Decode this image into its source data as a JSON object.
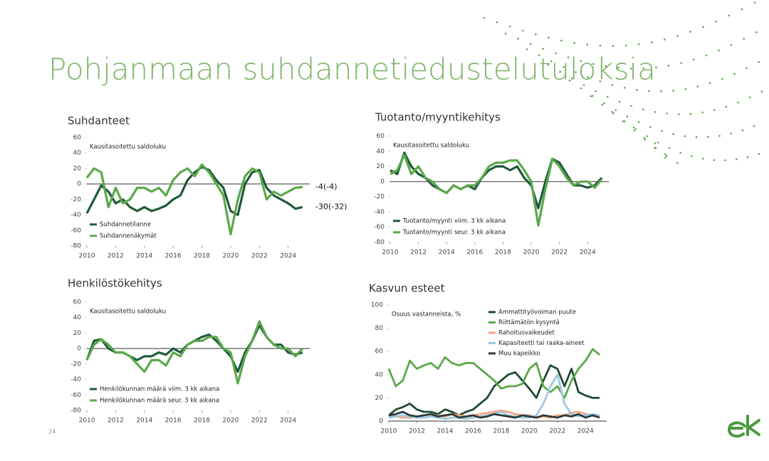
{
  "title": "Pohjanmaan suhdannetiedustelutuloksia",
  "page_number": "24",
  "chart_data": [
    {
      "type": "line",
      "title": "Suhdanteet",
      "subtitle": "Kausitasoitettu saldoluku",
      "x": [
        2010,
        2010.5,
        2011,
        2011.5,
        2012,
        2012.5,
        2013,
        2013.5,
        2014,
        2014.5,
        2015,
        2015.5,
        2016,
        2016.5,
        2017,
        2017.5,
        2018,
        2018.5,
        2019,
        2019.5,
        2020,
        2020.5,
        2021,
        2021.5,
        2022,
        2022.5,
        2023,
        2023.5,
        2024,
        2024.5,
        2025
      ],
      "xlim": [
        2010,
        2025.5
      ],
      "xticks": [
        2010,
        2012,
        2014,
        2016,
        2018,
        2020,
        2022,
        2024
      ],
      "ylim": [
        -80,
        60
      ],
      "yticks": [
        -80,
        -60,
        -40,
        -20,
        0,
        20,
        40,
        60
      ],
      "legend": "lower left",
      "series": [
        {
          "name": "Suhdannetilanne",
          "color": "#1f5a3a",
          "values": [
            -38,
            -20,
            -2,
            -10,
            -25,
            -20,
            -30,
            -35,
            -30,
            -35,
            -32,
            -28,
            -20,
            -15,
            5,
            15,
            22,
            18,
            5,
            -5,
            -35,
            -40,
            0,
            15,
            18,
            -5,
            -15,
            -20,
            -25,
            -32,
            -30
          ]
        },
        {
          "name": "Suhdannenäkymät",
          "color": "#5aa84a",
          "values": [
            8,
            20,
            15,
            -30,
            -5,
            -25,
            -20,
            -5,
            -5,
            -10,
            -5,
            -15,
            5,
            15,
            20,
            10,
            25,
            15,
            0,
            -15,
            -65,
            -20,
            10,
            20,
            15,
            -20,
            -10,
            -15,
            -10,
            -5,
            -4
          ]
        }
      ],
      "annotations": [
        "-30(-32)",
        "-4(-4)"
      ]
    },
    {
      "type": "line",
      "title": "Tuotanto/myyntikehitys",
      "subtitle": "Kausitasoitettu saldoluku",
      "x": [
        2010,
        2010.5,
        2011,
        2011.5,
        2012,
        2012.5,
        2013,
        2013.5,
        2014,
        2014.5,
        2015,
        2015.5,
        2016,
        2016.5,
        2017,
        2017.5,
        2018,
        2018.5,
        2019,
        2019.5,
        2020,
        2020.5,
        2021,
        2021.5,
        2022,
        2022.5,
        2023,
        2023.5,
        2024,
        2024.5,
        2025
      ],
      "xlim": [
        2010,
        2025.5
      ],
      "xticks": [
        2010,
        2012,
        2014,
        2016,
        2018,
        2020,
        2022,
        2024
      ],
      "ylim": [
        -80,
        60
      ],
      "yticks": [
        -80,
        -60,
        -40,
        -20,
        0,
        20,
        40,
        60
      ],
      "legend": "lower left",
      "series": [
        {
          "name": "Tuotanto/myynti viim. 3 kk aikana",
          "color": "#1f5a3a",
          "values": [
            15,
            10,
            38,
            20,
            10,
            5,
            -5,
            -10,
            -15,
            -5,
            -10,
            -5,
            -10,
            5,
            15,
            20,
            20,
            15,
            20,
            5,
            -5,
            -35,
            0,
            30,
            25,
            10,
            -5,
            -5,
            -8,
            -5,
            5
          ]
        },
        {
          "name": "Tuotanto/myynti seur. 3 kk aikana",
          "color": "#5aa84a",
          "values": [
            10,
            15,
            35,
            10,
            20,
            5,
            0,
            -10,
            -15,
            -5,
            -10,
            -5,
            -5,
            5,
            20,
            25,
            25,
            28,
            28,
            15,
            0,
            -58,
            -10,
            30,
            20,
            5,
            -5,
            0,
            0,
            -8,
            3
          ]
        }
      ]
    },
    {
      "type": "line",
      "title": "Henkilöstökehitys",
      "subtitle": "Kausitasoitettu saldoluku",
      "x": [
        2010,
        2010.5,
        2011,
        2011.5,
        2012,
        2012.5,
        2013,
        2013.5,
        2014,
        2014.5,
        2015,
        2015.5,
        2016,
        2016.5,
        2017,
        2017.5,
        2018,
        2018.5,
        2019,
        2019.5,
        2020,
        2020.5,
        2021,
        2021.5,
        2022,
        2022.5,
        2023,
        2023.5,
        2024,
        2024.5,
        2025
      ],
      "xlim": [
        2010,
        2025.5
      ],
      "xticks": [
        2010,
        2012,
        2014,
        2016,
        2018,
        2020,
        2022,
        2024
      ],
      "ylim": [
        -80,
        60
      ],
      "yticks": [
        -80,
        -60,
        -40,
        -20,
        0,
        20,
        40,
        60
      ],
      "legend": "lower left",
      "series": [
        {
          "name": "Henkilökunnan määrä viim. 3 kk aikana",
          "color": "#1f5a3a",
          "values": [
            -15,
            10,
            12,
            0,
            -5,
            -5,
            -10,
            -15,
            -10,
            -10,
            -5,
            -8,
            0,
            -5,
            5,
            10,
            15,
            18,
            10,
            0,
            -10,
            -30,
            -5,
            10,
            30,
            15,
            5,
            5,
            -5,
            -8,
            -5
          ]
        },
        {
          "name": "Henkilökunnan määrä seur. 3 kk aikana",
          "color": "#5aa84a",
          "values": [
            -15,
            5,
            12,
            5,
            -5,
            -5,
            -10,
            -20,
            -30,
            -15,
            -15,
            -22,
            -5,
            -10,
            5,
            10,
            10,
            15,
            15,
            0,
            -5,
            -45,
            -10,
            10,
            35,
            15,
            5,
            0,
            0,
            -10,
            0
          ]
        }
      ]
    },
    {
      "type": "line",
      "title": "Kasvun esteet",
      "subtitle": "Osuus vastanneista, %",
      "x": [
        2010,
        2010.5,
        2011,
        2011.5,
        2012,
        2012.5,
        2013,
        2013.5,
        2014,
        2014.5,
        2015,
        2015.5,
        2016,
        2016.5,
        2017,
        2017.5,
        2018,
        2018.5,
        2019,
        2019.5,
        2020,
        2020.5,
        2021,
        2021.5,
        2022,
        2022.5,
        2023,
        2023.5,
        2024,
        2024.5,
        2025
      ],
      "xlim": [
        2010,
        2025.5
      ],
      "xticks": [
        2010,
        2012,
        2014,
        2016,
        2018,
        2020,
        2022,
        2024
      ],
      "ylim": [
        0,
        100
      ],
      "yticks": [
        0,
        20,
        40,
        60,
        80,
        100
      ],
      "legend": "upper right",
      "series": [
        {
          "name": "Ammattityövoiman puute",
          "color": "#1e4a32",
          "values": [
            5,
            10,
            12,
            15,
            10,
            8,
            8,
            6,
            10,
            8,
            5,
            8,
            10,
            15,
            20,
            30,
            35,
            40,
            42,
            35,
            28,
            20,
            35,
            48,
            45,
            30,
            45,
            25,
            22,
            20,
            20
          ]
        },
        {
          "name": "Riittämätön kysyntä",
          "color": "#5aa84a",
          "values": [
            45,
            30,
            35,
            52,
            45,
            48,
            50,
            45,
            55,
            50,
            48,
            50,
            50,
            45,
            40,
            35,
            28,
            30,
            30,
            32,
            45,
            50,
            30,
            25,
            30,
            20,
            35,
            45,
            52,
            62,
            57
          ]
        },
        {
          "name": "Rahoitusvaikeudet",
          "color": "#f4a582",
          "values": [
            5,
            4,
            3,
            3,
            4,
            3,
            4,
            5,
            4,
            6,
            5,
            4,
            5,
            6,
            7,
            8,
            9,
            8,
            6,
            5,
            5,
            3,
            4,
            3,
            5,
            5,
            7,
            8,
            6,
            5,
            4
          ]
        },
        {
          "name": "Kapasiteetti tai raaka-aineet",
          "color": "#9ecae1",
          "values": [
            3,
            4,
            5,
            4,
            3,
            3,
            4,
            3,
            2,
            3,
            3,
            2,
            3,
            4,
            5,
            6,
            8,
            5,
            4,
            3,
            3,
            5,
            15,
            30,
            40,
            15,
            6,
            4,
            5,
            6,
            5
          ]
        },
        {
          "name": "Muu kapeikko",
          "color": "#2a3a3a",
          "values": [
            5,
            6,
            8,
            5,
            4,
            5,
            6,
            4,
            5,
            6,
            3,
            4,
            5,
            3,
            4,
            6,
            5,
            4,
            3,
            5,
            4,
            3,
            5,
            4,
            3,
            5,
            4,
            6,
            3,
            5,
            3
          ]
        }
      ]
    }
  ]
}
